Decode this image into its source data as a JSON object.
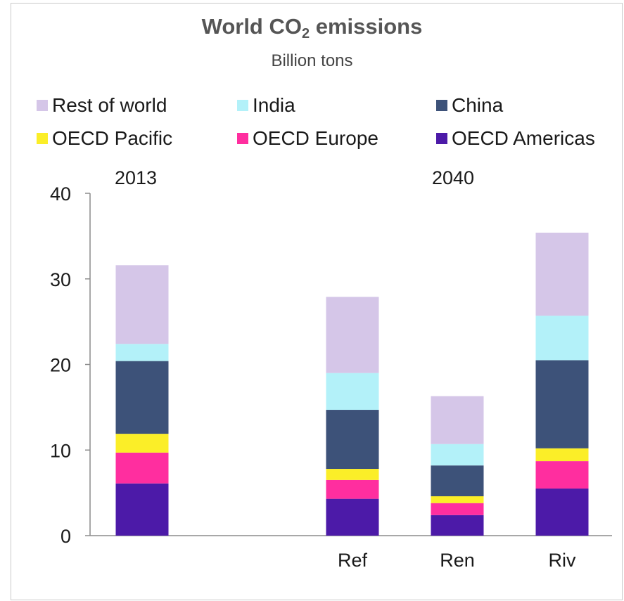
{
  "chart_data": {
    "type": "bar",
    "stacked": true,
    "title_main": "World CO",
    "title_sub": "2",
    "title_rest": " emissions",
    "subtitle": "Billion tons",
    "categories": [
      "",
      "Ref",
      "Ren",
      "Riv"
    ],
    "groups": [
      "2013",
      "2040"
    ],
    "ylim": [
      0,
      40
    ],
    "yticks": [
      "0",
      "10",
      "20",
      "30",
      "40"
    ],
    "legend_position": "top",
    "series": [
      {
        "name": "OECD Americas",
        "color": "#4c1aa8",
        "values": [
          6.1,
          4.3,
          2.4,
          5.5
        ]
      },
      {
        "name": "OECD Europe",
        "color": "#ff2e9f",
        "values": [
          3.6,
          2.2,
          1.4,
          3.2
        ]
      },
      {
        "name": "OECD Pacific",
        "color": "#fbee28",
        "values": [
          2.2,
          1.3,
          0.8,
          1.5
        ]
      },
      {
        "name": "China",
        "color": "#3d5279",
        "values": [
          8.5,
          6.9,
          3.6,
          10.3
        ]
      },
      {
        "name": "India",
        "color": "#b3f1f9",
        "values": [
          2.0,
          4.3,
          2.5,
          5.2
        ]
      },
      {
        "name": "Rest of world",
        "color": "#d5c6e8",
        "values": [
          9.2,
          8.9,
          5.6,
          9.7
        ]
      }
    ]
  }
}
